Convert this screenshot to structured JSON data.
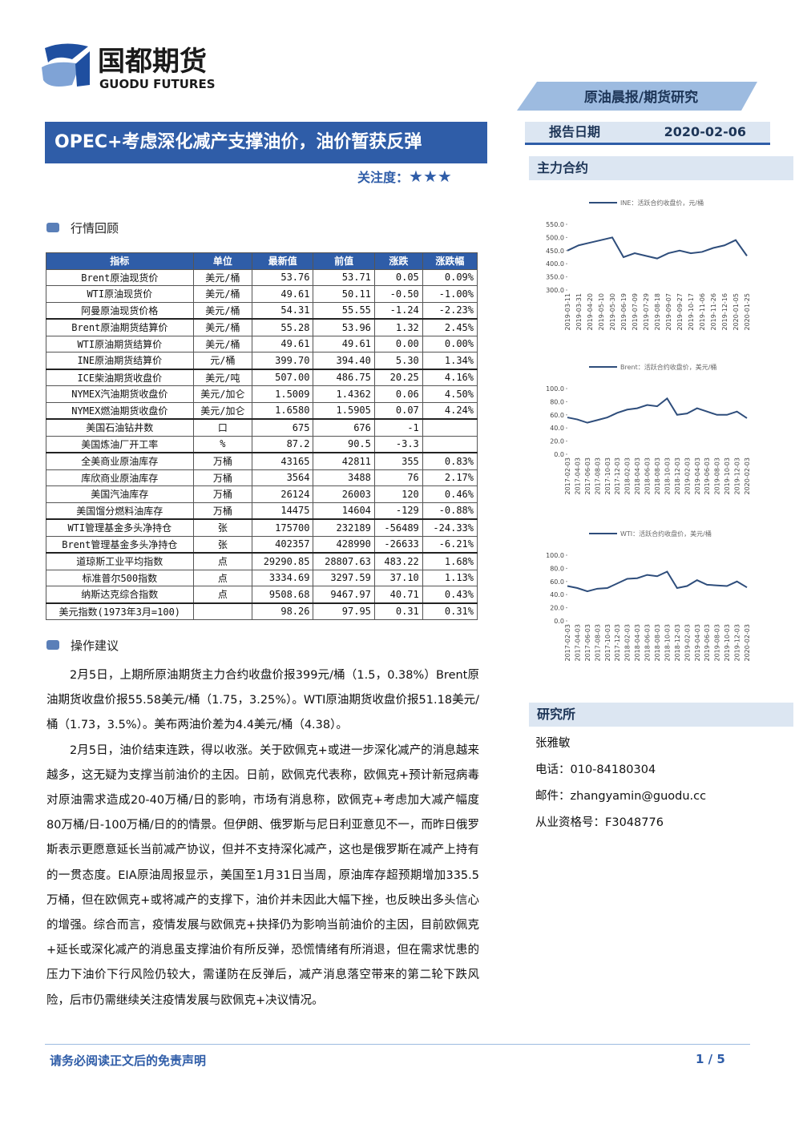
{
  "header": {
    "logo_cn": "国都期货",
    "logo_en": "GUODU FUTURES",
    "report_type": "原油晨报/期货研究",
    "title": "OPEC+考虑深化减产支撑油价，油价暂获反弹",
    "attention_label": "关注度：",
    "attention_stars": "★★★",
    "date_label": "报告日期",
    "date": "2020-02-06"
  },
  "sections": {
    "market": "行情回顾",
    "advice": "操作建议",
    "main_contract": "主力合约",
    "institute": "研究所"
  },
  "table": {
    "header": [
      "指标",
      "单位",
      "最新值",
      "前值",
      "涨跌",
      "涨跌幅"
    ],
    "rows": [
      [
        "Brent原油现货价",
        "美元/桶",
        "53.76",
        "53.71",
        "0.05",
        "0.09%"
      ],
      [
        "WTI原油现货价",
        "美元/桶",
        "49.61",
        "50.11",
        "-0.50",
        "-1.00%"
      ],
      [
        "阿曼原油现货价格",
        "美元/桶",
        "54.31",
        "55.55",
        "-1.24",
        "-2.23%"
      ],
      [
        "Brent原油期货结算价",
        "美元/桶",
        "55.28",
        "53.96",
        "1.32",
        "2.45%"
      ],
      [
        "WTI原油期货结算价",
        "美元/桶",
        "49.61",
        "49.61",
        "0.00",
        "0.00%"
      ],
      [
        "INE原油期货结算价",
        "元/桶",
        "399.70",
        "394.40",
        "5.30",
        "1.34%"
      ],
      [
        "ICE柴油期货收盘价",
        "美元/吨",
        "507.00",
        "486.75",
        "20.25",
        "4.16%"
      ],
      [
        "NYMEX汽油期货收盘价",
        "美元/加仑",
        "1.5009",
        "1.4362",
        "0.06",
        "4.50%"
      ],
      [
        "NYMEX燃油期货收盘价",
        "美元/加仑",
        "1.6580",
        "1.5905",
        "0.07",
        "4.24%"
      ],
      [
        "美国石油钻井数",
        "口",
        "675",
        "676",
        "-1",
        null
      ],
      [
        "美国炼油厂开工率",
        "%",
        "87.2",
        "90.5",
        "-3.3",
        null
      ],
      [
        "全美商业原油库存",
        "万桶",
        "43165",
        "42811",
        "355",
        "0.83%"
      ],
      [
        "库欣商业原油库存",
        "万桶",
        "3564",
        "3488",
        "76",
        "2.17%"
      ],
      [
        "美国汽油库存",
        "万桶",
        "26124",
        "26003",
        "120",
        "0.46%"
      ],
      [
        "美国馏分燃料油库存",
        "万桶",
        "14475",
        "14604",
        "-129",
        "-0.88%"
      ],
      [
        "WTI管理基金多头净持仓",
        "张",
        "175700",
        "232189",
        "-56489",
        "-24.33%"
      ],
      [
        "Brent管理基金多头净持仓",
        "张",
        "402357",
        "428990",
        "-26633",
        "-6.21%"
      ],
      [
        "道琼斯工业平均指数",
        "点",
        "29290.85",
        "28807.63",
        "483.22",
        "1.68%"
      ],
      [
        "标准普尔500指数",
        "点",
        "3334.69",
        "3297.59",
        "37.10",
        "1.13%"
      ],
      [
        "纳斯达克综合指数",
        "点",
        "9508.68",
        "9467.97",
        "40.71",
        "0.43%"
      ],
      [
        "美元指数(1973年3月=100)",
        null,
        "98.26",
        "97.95",
        "0.31",
        "0.31%"
      ]
    ]
  },
  "paragraphs": [
    "2月5日，上期所原油期货主力合约收盘价报399元/桶（1.5，0.38%）Brent原油期货收盘价报55.58美元/桶（1.75，3.25%）。WTI原油期货收盘价报51.18美元/桶（1.73，3.5%）。美布两油价差为4.4美元/桶（4.38）。",
    "2月5日，油价结束连跌，得以收涨。关于欧佩克+或进一步深化减产的消息越来越多，这无疑为支撑当前油价的主因。日前，欧佩克代表称，欧佩克+预计新冠病毒对原油需求造成20-40万桶/日的影响，市场有消息称，欧佩克+考虑加大减产幅度80万桶/日-100万桶/日的的情景。但伊朗、俄罗斯与尼日利亚意见不一，而昨日俄罗斯表示更愿意延长当前减产协议，但并不支持深化减产，这也是俄罗斯在减产上持有的一贯态度。EIA原油周报显示，美国至1月31日当周，原油库存超预期增加335.5万桶，但在欧佩克+或将减产的支撑下，油价并未因此大幅下挫，也反映出多头信心的增强。综合而言，疫情发展与欧佩克+抉择仍为影响当前油价的主因，目前欧佩克+延长或深化减产的消息虽支撑油价有所反弹，恐慌情绪有所消退，但在需求忧患的压力下油价下行风险仍较大，需谨防在反弹后，减产消息落空带来的第二轮下跌风险，后市仍需继续关注疫情发展与欧佩克+决议情况。"
  ],
  "contact": {
    "name": "张雅敏",
    "phone": "电话：010-84180304",
    "email": "邮件：zhangyamin@guodu.cc",
    "license": "从业资格号：F3048776"
  },
  "footer": {
    "disclaimer": "请务必阅读正文后的免责声明",
    "page": "1 / 5"
  },
  "chart_data": [
    {
      "type": "line",
      "categories": [
        "2019-03-11",
        "2019-03-31",
        "2019-04-20",
        "2019-05-10",
        "2019-05-30",
        "2019-06-19",
        "2019-07-09",
        "2019-07-29",
        "2019-08-18",
        "2019-09-07",
        "2019-09-27",
        "2019-10-17",
        "2019-11-06",
        "2019-11-26",
        "2019-12-16",
        "2020-01-05",
        "2020-01-25"
      ],
      "series": [
        {
          "name": "INE：活跃合约收盘价，元/桶",
          "color": "#2e4d7b",
          "values": [
            450,
            470,
            480,
            490,
            500,
            425,
            440,
            430,
            420,
            440,
            450,
            440,
            445,
            460,
            470,
            490,
            430
          ]
        }
      ],
      "ylim": [
        300,
        550
      ],
      "yticks": [
        {
          "value": 300,
          "label": "300.0"
        },
        {
          "value": 350,
          "label": "350.0"
        },
        {
          "value": 400,
          "label": "400.0"
        },
        {
          "value": 450,
          "label": "450.0"
        },
        {
          "value": 500,
          "label": "500.0"
        },
        {
          "value": 550,
          "label": "550.0"
        }
      ]
    },
    {
      "type": "line",
      "categories": [
        "2017-02-03",
        "2017-04-03",
        "2017-06-03",
        "2017-08-03",
        "2017-10-03",
        "2017-12-03",
        "2018-02-03",
        "2018-04-03",
        "2018-06-03",
        "2018-08-03",
        "2018-10-03",
        "2018-12-03",
        "2019-02-03",
        "2019-04-03",
        "2019-06-03",
        "2019-08-03",
        "2019-10-03",
        "2019-12-03",
        "2020-02-03"
      ],
      "series": [
        {
          "name": "Brent：活跃合约收盘价，美元/桶",
          "color": "#2e4d7b",
          "values": [
            56,
            53,
            48,
            52,
            56,
            63,
            68,
            70,
            75,
            73,
            85,
            60,
            62,
            70,
            65,
            60,
            60,
            65,
            55
          ]
        }
      ],
      "ylim": [
        0,
        100
      ],
      "yticks": [
        {
          "value": 0,
          "label": "0.0"
        },
        {
          "value": 20,
          "label": "20.0"
        },
        {
          "value": 40,
          "label": "40.0"
        },
        {
          "value": 60,
          "label": "60.0"
        },
        {
          "value": 80,
          "label": "80.0"
        },
        {
          "value": 100,
          "label": "100.0"
        }
      ]
    },
    {
      "type": "line",
      "categories": [
        "2017-02-03",
        "2017-04-03",
        "2017-06-03",
        "2017-08-03",
        "2017-10-03",
        "2017-12-03",
        "2018-02-03",
        "2018-04-03",
        "2018-06-03",
        "2018-08-03",
        "2018-10-03",
        "2018-12-03",
        "2019-02-03",
        "2019-04-03",
        "2019-06-03",
        "2019-08-03",
        "2019-10-03",
        "2019-12-03",
        "2020-02-03"
      ],
      "series": [
        {
          "name": "WTI：活跃合约收盘价，美元/桶",
          "color": "#2e4d7b",
          "values": [
            53,
            50,
            45,
            49,
            50,
            57,
            64,
            65,
            70,
            68,
            75,
            50,
            53,
            62,
            55,
            54,
            53,
            60,
            51
          ]
        }
      ],
      "ylim": [
        0,
        100
      ],
      "yticks": [
        {
          "value": 0,
          "label": "0.0"
        },
        {
          "value": 20,
          "label": "20.0"
        },
        {
          "value": 40,
          "label": "40.0"
        },
        {
          "value": 60,
          "label": "60.0"
        },
        {
          "value": 80,
          "label": "80.0"
        },
        {
          "value": 100,
          "label": "100.0"
        }
      ]
    }
  ]
}
